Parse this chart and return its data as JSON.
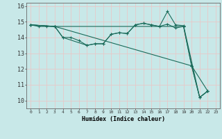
{
  "title": "",
  "xlabel": "Humidex (Indice chaleur)",
  "ylabel": "",
  "background_color": "#c8e8e8",
  "grid_color": "#e8c8c8",
  "line_color": "#1a6b5a",
  "xlim": [
    -0.5,
    23.5
  ],
  "ylim": [
    9.5,
    16.2
  ],
  "xticks": [
    0,
    1,
    2,
    3,
    4,
    5,
    6,
    7,
    8,
    9,
    10,
    11,
    12,
    13,
    14,
    15,
    16,
    17,
    18,
    19,
    20,
    21,
    22,
    23
  ],
  "yticks": [
    10,
    11,
    12,
    13,
    14,
    15,
    16
  ],
  "series": [
    {
      "x": [
        0,
        1,
        2,
        3,
        4,
        5,
        6,
        7,
        8,
        9,
        10,
        11,
        12,
        13,
        14,
        15,
        16,
        17,
        18,
        19,
        20,
        22
      ],
      "y": [
        14.8,
        14.7,
        14.7,
        14.7,
        14.0,
        14.0,
        13.8,
        13.5,
        13.6,
        13.6,
        14.2,
        14.3,
        14.25,
        14.8,
        14.9,
        14.8,
        14.7,
        14.85,
        14.6,
        14.7,
        12.2,
        10.6
      ]
    },
    {
      "x": [
        0,
        3,
        4,
        7,
        8,
        9,
        10,
        11,
        12,
        13,
        14,
        15,
        16,
        17,
        18,
        19,
        21,
        22
      ],
      "y": [
        14.8,
        14.7,
        14.0,
        13.5,
        13.6,
        13.6,
        14.2,
        14.3,
        14.25,
        14.8,
        14.9,
        14.8,
        14.7,
        15.65,
        14.8,
        14.75,
        10.2,
        10.6
      ]
    },
    {
      "x": [
        0,
        3,
        20,
        21,
        22
      ],
      "y": [
        14.8,
        14.7,
        12.2,
        10.2,
        10.6
      ]
    },
    {
      "x": [
        0,
        3,
        19,
        20,
        21,
        22
      ],
      "y": [
        14.8,
        14.7,
        14.7,
        12.2,
        10.2,
        10.6
      ]
    }
  ]
}
